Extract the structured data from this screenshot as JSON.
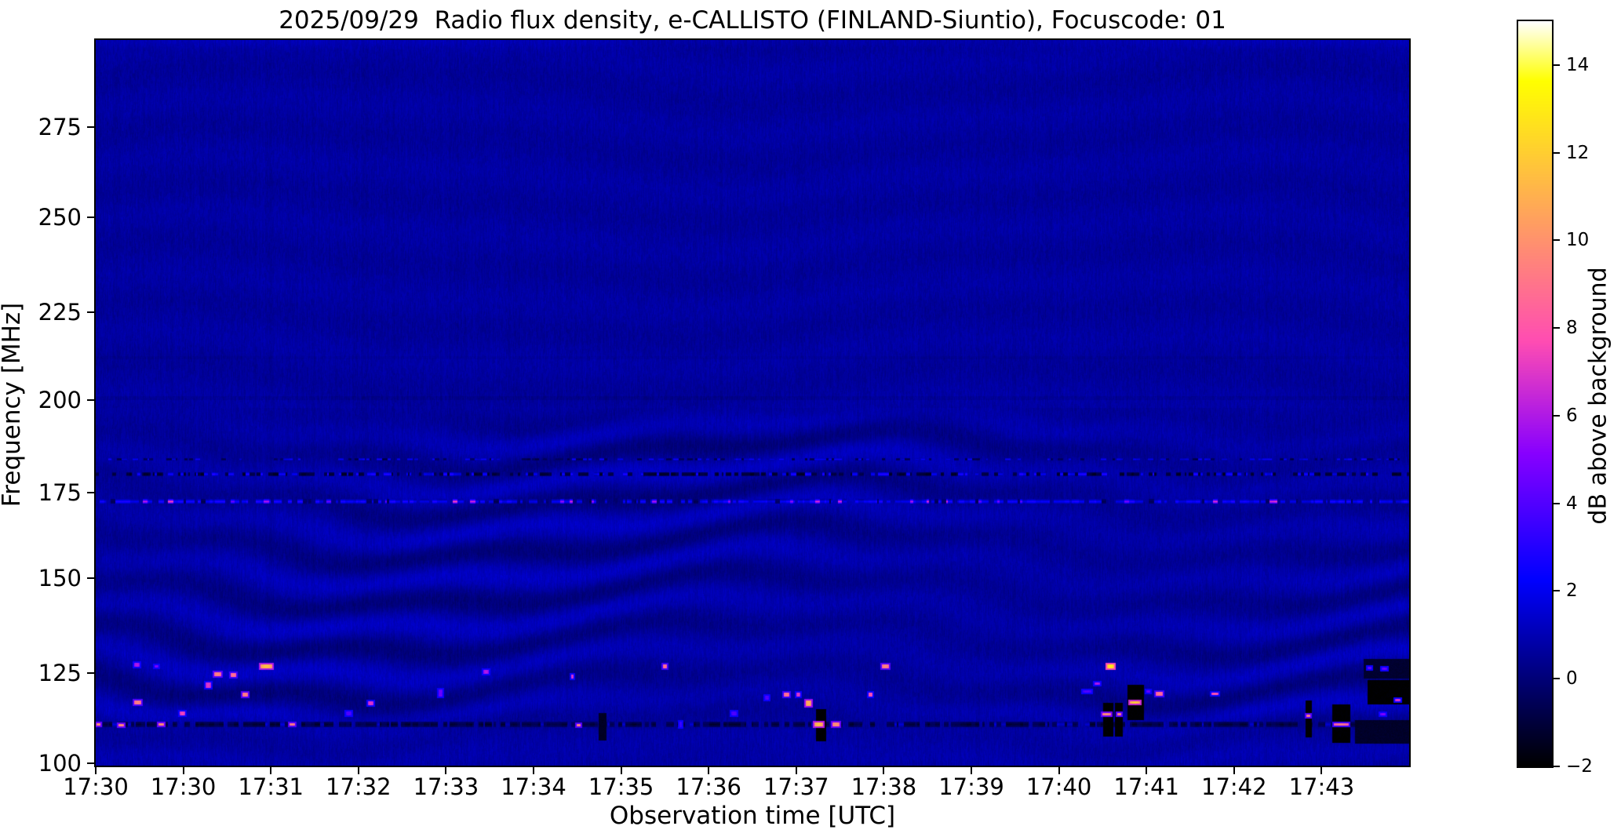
{
  "figure_bg": "#ffffff",
  "chart_data": {
    "type": "heatmap",
    "title": "2025/09/29  Radio flux density, e-CALLISTO (FINLAND-Siuntio), Focuscode: 01",
    "xlabel": "Observation time [UTC]",
    "ylabel": "Frequency [MHz]",
    "grid": false,
    "x_ticks": [
      "17:30",
      "17:30",
      "17:31",
      "17:32",
      "17:33",
      "17:34",
      "17:35",
      "17:36",
      "17:37",
      "17:38",
      "17:39",
      "17:40",
      "17:41",
      "17:42",
      "17:43"
    ],
    "y_axis": {
      "unit": "MHz",
      "range_approx": [
        99,
        298
      ],
      "ticks": [
        {
          "value": 275,
          "frac": 0.12
        },
        {
          "value": 250,
          "frac": 0.2443
        },
        {
          "value": 225,
          "frac": 0.3751
        },
        {
          "value": 200,
          "frac": 0.4962
        },
        {
          "value": 175,
          "frac": 0.6238
        },
        {
          "value": 150,
          "frac": 0.7416
        },
        {
          "value": 125,
          "frac": 0.8724
        },
        {
          "value": 100,
          "frac": 0.9968
        }
      ],
      "anchors": [
        {
          "f": 298,
          "frac": 0.0
        },
        {
          "f": 275,
          "frac": 0.12
        },
        {
          "f": 250,
          "frac": 0.2443
        },
        {
          "f": 225,
          "frac": 0.3751
        },
        {
          "f": 200,
          "frac": 0.4962
        },
        {
          "f": 175,
          "frac": 0.6238
        },
        {
          "f": 150,
          "frac": 0.7416
        },
        {
          "f": 125,
          "frac": 0.8724
        },
        {
          "f": 100,
          "frac": 0.9968
        },
        {
          "f": 99,
          "frac": 1.0
        }
      ]
    },
    "colorbar": {
      "label": "dB above background",
      "ticks": [
        -2,
        0,
        2,
        4,
        6,
        8,
        10,
        12,
        14
      ],
      "range": [
        -2,
        15
      ],
      "colormap": "gnuplot2"
    },
    "background_db": 0.62,
    "wave_field": {
      "upper_ripple_amp_db": 0.11,
      "lower_wave_amp_db": 0.5,
      "wave_zone_freq": [
        110,
        166
      ],
      "dark_rows_freq": [
        200.5,
        211.5
      ]
    },
    "rfi_lines": [
      {
        "f": 184.1,
        "th": 3,
        "pd": 0.18,
        "dark": [
          -1.0,
          -0.4
        ],
        "pb": 0.22,
        "bright": [
          1.5,
          2.8
        ],
        "ph": 0.0,
        "hot": [
          0,
          0
        ]
      },
      {
        "f": 180.0,
        "th": 5,
        "pd": 0.38,
        "dark": [
          -1.7,
          -0.8
        ],
        "pb": 0.25,
        "bright": [
          1.8,
          3.4
        ],
        "ph": 0.0,
        "hot": [
          0,
          0
        ]
      },
      {
        "f": 172.5,
        "th": 6,
        "pd": 0.06,
        "dark": [
          -0.8,
          -0.3
        ],
        "pb": 0.58,
        "bright": [
          1.7,
          3.2
        ],
        "ph": 0.09,
        "hot": [
          4.5,
          8.0
        ]
      },
      {
        "f": 110.8,
        "th": 7,
        "pd": 0.72,
        "dark": [
          -1.4,
          -0.5
        ],
        "pb": 0.05,
        "bright": [
          1.0,
          1.8
        ],
        "ph": 0.0,
        "hot": [
          0,
          0
        ]
      }
    ],
    "dropout_patches": [
      {
        "t0": 0.3829,
        "t1": 0.3889,
        "f0": 114.0,
        "f1": 106.3,
        "db": -1.4
      },
      {
        "t0": 0.5484,
        "t1": 0.5562,
        "f0": 115.1,
        "f1": 106.0,
        "db": -2
      },
      {
        "t0": 0.767,
        "t1": 0.7748,
        "f0": 116.8,
        "f1": 107.3,
        "db": -2
      },
      {
        "t0": 0.776,
        "t1": 0.782,
        "f0": 116.8,
        "f1": 107.3,
        "db": -2
      },
      {
        "t0": 0.7856,
        "t1": 0.7981,
        "f0": 121.8,
        "f1": 111.9,
        "db": -2
      },
      {
        "t0": 0.9211,
        "t1": 0.9259,
        "f0": 117.3,
        "f1": 107.1,
        "db": -2
      },
      {
        "t0": 0.9415,
        "t1": 0.9552,
        "f0": 116.4,
        "f1": 105.6,
        "db": -2
      },
      {
        "t0": 0.9653,
        "t1": 1.0,
        "f0": 128.7,
        "f1": 123.5,
        "db": -1.2
      },
      {
        "t0": 0.9683,
        "t1": 1.0,
        "f0": 123.1,
        "f1": 116.4,
        "db": -2
      },
      {
        "t0": 0.9588,
        "t1": 1.0,
        "f0": 111.9,
        "f1": 105.4,
        "db": -1.3
      }
    ],
    "bright_spots": [
      {
        "t": 0.031,
        "f": 127.2,
        "w": 8,
        "h": 6,
        "db": 6
      },
      {
        "t": 0.046,
        "f": 126.8,
        "w": 6,
        "h": 5,
        "db": 5
      },
      {
        "t": 0.0926,
        "f": 124.8,
        "w": 11,
        "h": 6,
        "db": 9.5
      },
      {
        "t": 0.1046,
        "f": 124.6,
        "w": 8,
        "h": 6,
        "db": 9
      },
      {
        "t": 0.0854,
        "f": 121.8,
        "w": 9,
        "h": 9,
        "db": 7
      },
      {
        "t": 0.1296,
        "f": 126.8,
        "w": 17,
        "h": 7,
        "db": 11.5
      },
      {
        "t": 0.1135,
        "f": 119.2,
        "w": 9,
        "h": 7,
        "db": 9.5
      },
      {
        "t": 0.0317,
        "f": 117.0,
        "w": 10,
        "h": 6,
        "db": 9.5
      },
      {
        "t": 0.0657,
        "f": 114.0,
        "w": 9,
        "h": 7,
        "db": 7.5
      },
      {
        "t": 0.0496,
        "f": 110.8,
        "w": 9,
        "h": 5,
        "db": 10
      },
      {
        "t": 0.0191,
        "f": 110.6,
        "w": 8,
        "h": 5,
        "db": 10
      },
      {
        "t": 0.002,
        "f": 110.8,
        "w": 6,
        "h": 5,
        "db": 10
      },
      {
        "t": 0.1494,
        "f": 110.8,
        "w": 8,
        "h": 5,
        "db": 9.5
      },
      {
        "t": 0.1924,
        "f": 114.0,
        "w": 8,
        "h": 6,
        "db": 4
      },
      {
        "t": 0.2091,
        "f": 116.8,
        "w": 9,
        "h": 7,
        "db": 7
      },
      {
        "t": 0.2969,
        "f": 125.5,
        "w": 9,
        "h": 6,
        "db": 6
      },
      {
        "t": 0.2623,
        "f": 119.6,
        "w": 6,
        "h": 10,
        "db": 4.5
      },
      {
        "t": 0.4331,
        "f": 126.8,
        "w": 7,
        "h": 7,
        "db": 9
      },
      {
        "t": 0.3626,
        "f": 124.2,
        "w": 5,
        "h": 7,
        "db": 7
      },
      {
        "t": 0.601,
        "f": 126.8,
        "w": 10,
        "h": 7,
        "db": 9.5
      },
      {
        "t": 0.5257,
        "f": 119.2,
        "w": 9,
        "h": 6,
        "db": 9
      },
      {
        "t": 0.5347,
        "f": 119.2,
        "w": 6,
        "h": 6,
        "db": 7
      },
      {
        "t": 0.5424,
        "f": 116.8,
        "w": 8,
        "h": 8,
        "db": 11
      },
      {
        "t": 0.5108,
        "f": 118.3,
        "w": 7,
        "h": 6,
        "db": 4
      },
      {
        "t": 0.5897,
        "f": 119.2,
        "w": 7,
        "h": 6,
        "db": 8
      },
      {
        "t": 0.4857,
        "f": 114.0,
        "w": 8,
        "h": 6,
        "db": 4
      },
      {
        "t": 0.5502,
        "f": 110.8,
        "w": 12,
        "h": 6,
        "db": 11.5
      },
      {
        "t": 0.5633,
        "f": 110.8,
        "w": 10,
        "h": 6,
        "db": 10
      },
      {
        "t": 0.3674,
        "f": 110.6,
        "w": 7,
        "h": 5,
        "db": 9.5
      },
      {
        "t": 0.4451,
        "f": 110.8,
        "w": 4,
        "h": 8,
        "db": 3.5
      },
      {
        "t": 0.7724,
        "f": 126.8,
        "w": 11,
        "h": 6,
        "db": 13
      },
      {
        "t": 0.7622,
        "f": 122.2,
        "w": 8,
        "h": 5,
        "db": 6
      },
      {
        "t": 0.7545,
        "f": 120.1,
        "w": 12,
        "h": 5,
        "db": 4
      },
      {
        "t": 0.7909,
        "f": 117.0,
        "w": 14,
        "h": 5,
        "db": 12
      },
      {
        "t": 0.7694,
        "f": 113.8,
        "w": 12,
        "h": 4,
        "db": 10
      },
      {
        "t": 0.779,
        "f": 113.8,
        "w": 7,
        "h": 4,
        "db": 9.5
      },
      {
        "t": 0.8094,
        "f": 119.4,
        "w": 10,
        "h": 6,
        "db": 9
      },
      {
        "t": 0.8011,
        "f": 120.1,
        "w": 7,
        "h": 5,
        "db": 4.5
      },
      {
        "t": 0.8518,
        "f": 119.4,
        "w": 10,
        "h": 5,
        "db": 8
      },
      {
        "t": 0.9229,
        "f": 113.2,
        "w": 6,
        "h": 4,
        "db": 9.5
      },
      {
        "t": 0.948,
        "f": 110.8,
        "w": 20,
        "h": 4,
        "db": 9
      },
      {
        "t": 0.991,
        "f": 117.5,
        "w": 8,
        "h": 4,
        "db": 7
      },
      {
        "t": 0.9797,
        "f": 113.8,
        "w": 9,
        "h": 5,
        "db": 5
      },
      {
        "t": 0.9695,
        "f": 126.5,
        "w": 7,
        "h": 4,
        "db": 4.5
      },
      {
        "t": 0.9809,
        "f": 126.3,
        "w": 8,
        "h": 4,
        "db": 4.5
      }
    ]
  }
}
